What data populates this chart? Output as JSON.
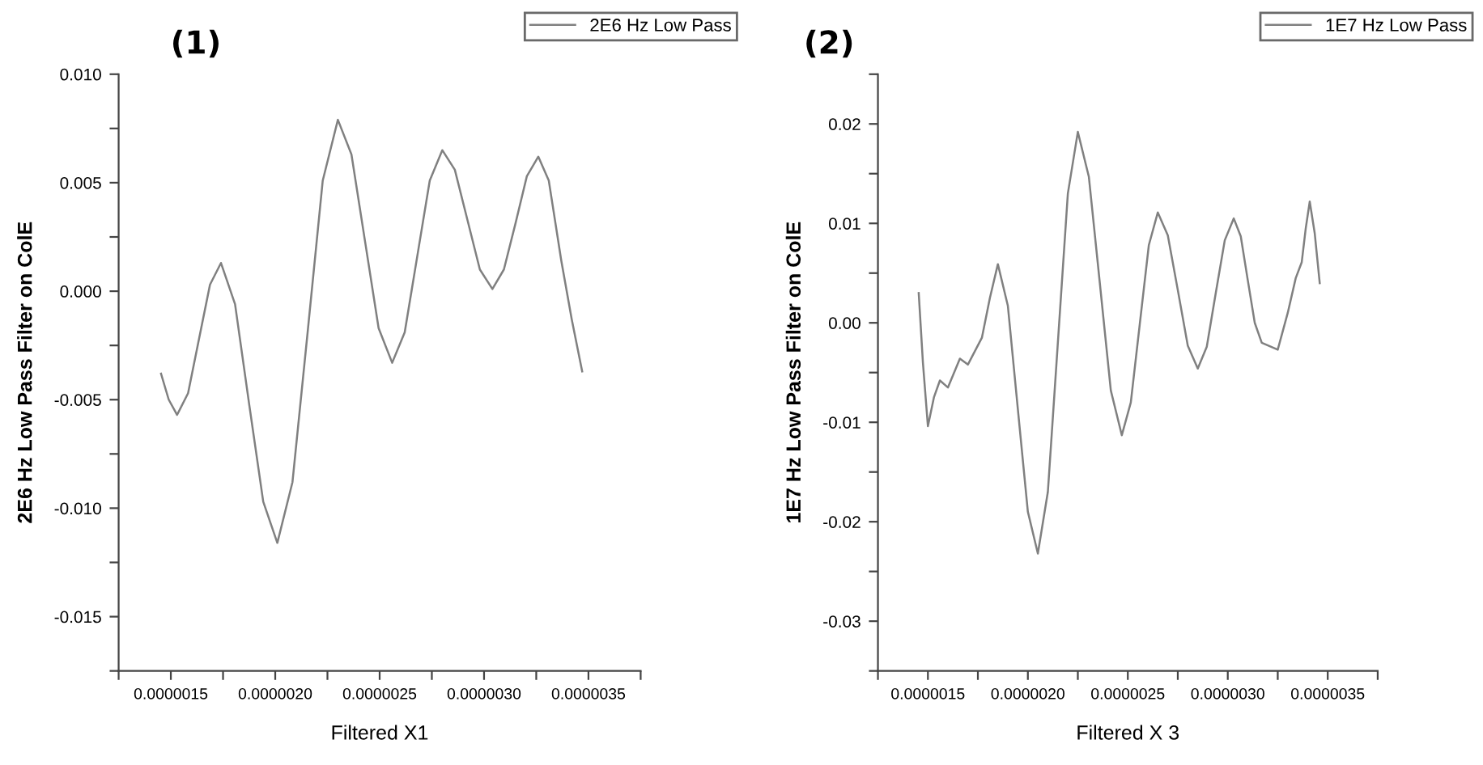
{
  "chart_data": [
    {
      "type": "line",
      "title": "(1)",
      "xlabel": "Filtered X1",
      "ylabel": "2E6 Hz Low Pass Filter on ColE",
      "legend": "top right",
      "marker": "none",
      "line_style": "solid",
      "grid": false,
      "xlim": [
        1.25e-06,
        3.75e-06
      ],
      "xticks": [
        {
          "value": 1.25e-06,
          "label": null
        },
        {
          "value": 1.5e-06,
          "label": "0.0000015"
        },
        {
          "value": 1.75e-06,
          "label": null
        },
        {
          "value": 2e-06,
          "label": "0.0000020"
        },
        {
          "value": 2.25e-06,
          "label": null
        },
        {
          "value": 2.5e-06,
          "label": "0.0000025"
        },
        {
          "value": 2.75e-06,
          "label": null
        },
        {
          "value": 3e-06,
          "label": "0.0000030"
        },
        {
          "value": 3.25e-06,
          "label": null
        },
        {
          "value": 3.5e-06,
          "label": "0.0000035"
        },
        {
          "value": 3.75e-06,
          "label": null
        }
      ],
      "ylim": [
        -0.0175,
        0.01
      ],
      "yticks": [
        {
          "value": -0.0175,
          "label": null
        },
        {
          "value": -0.015,
          "label": "-0.015"
        },
        {
          "value": -0.0125,
          "label": null
        },
        {
          "value": -0.01,
          "label": "-0.010"
        },
        {
          "value": -0.0075,
          "label": null
        },
        {
          "value": -0.005,
          "label": "-0.005"
        },
        {
          "value": -0.0025,
          "label": null
        },
        {
          "value": 0.0,
          "label": "0.000"
        },
        {
          "value": 0.0025,
          "label": null
        },
        {
          "value": 0.005,
          "label": "0.005"
        },
        {
          "value": 0.0075,
          "label": null
        },
        {
          "value": 0.01,
          "label": "0.010"
        }
      ],
      "series": [
        {
          "name": "2E6 Hz Low Pass",
          "color": "#808080",
          "x": [
            1.453e-06,
            1.49e-06,
            1.53e-06,
            1.5825e-06,
            1.635e-06,
            1.6875e-06,
            1.74e-06,
            1.8075e-06,
            1.875e-06,
            1.9425e-06,
            2.01e-06,
            2.0825e-06,
            2.155e-06,
            2.2275e-06,
            2.3e-06,
            2.365e-06,
            2.43e-06,
            2.495e-06,
            2.56e-06,
            2.62e-06,
            2.68e-06,
            2.74e-06,
            2.8e-06,
            2.86e-06,
            2.92e-06,
            2.98e-06,
            3.04e-06,
            3.095e-06,
            3.15e-06,
            3.205e-06,
            3.26e-06,
            3.31e-06,
            3.37e-06,
            3.42e-06,
            3.47e-06
          ],
          "values": [
            -0.0038,
            -0.005,
            -0.0057,
            -0.0047,
            -0.0022,
            0.0003,
            0.0013,
            -0.0006,
            -0.0052,
            -0.0097,
            -0.0116,
            -0.0088,
            -0.0019,
            0.0051,
            0.0079,
            0.0063,
            0.0023,
            -0.0017,
            -0.0033,
            -0.0019,
            0.0016,
            0.0051,
            0.0065,
            0.0056,
            0.0033,
            0.001,
            0.0001,
            0.001,
            0.0031,
            0.0053,
            0.0062,
            0.0051,
            0.0014,
            -0.0013,
            -0.0037
          ]
        }
      ]
    },
    {
      "type": "line",
      "title": "(2)",
      "xlabel": "Filtered X 3",
      "ylabel": "1E7 Hz Low Pass Filter on ColE",
      "legend": "top right",
      "marker": "none",
      "line_style": "solid",
      "grid": false,
      "xlim": [
        1.25e-06,
        3.75e-06
      ],
      "xticks": [
        {
          "value": 1.25e-06,
          "label": null
        },
        {
          "value": 1.5e-06,
          "label": "0.0000015"
        },
        {
          "value": 1.75e-06,
          "label": null
        },
        {
          "value": 2e-06,
          "label": "0.0000020"
        },
        {
          "value": 2.25e-06,
          "label": null
        },
        {
          "value": 2.5e-06,
          "label": "0.0000025"
        },
        {
          "value": 2.75e-06,
          "label": null
        },
        {
          "value": 3e-06,
          "label": "0.0000030"
        },
        {
          "value": 3.25e-06,
          "label": null
        },
        {
          "value": 3.5e-06,
          "label": "0.0000035"
        },
        {
          "value": 3.75e-06,
          "label": null
        }
      ],
      "ylim": [
        -0.035,
        0.025
      ],
      "yticks": [
        {
          "value": -0.035,
          "label": null
        },
        {
          "value": -0.03,
          "label": "-0.03"
        },
        {
          "value": -0.025,
          "label": null
        },
        {
          "value": -0.02,
          "label": "-0.02"
        },
        {
          "value": -0.015,
          "label": null
        },
        {
          "value": -0.01,
          "label": "-0.01"
        },
        {
          "value": -0.005,
          "label": null
        },
        {
          "value": 0.0,
          "label": "0.00"
        },
        {
          "value": 0.005,
          "label": null
        },
        {
          "value": 0.01,
          "label": "0.01"
        },
        {
          "value": 0.015,
          "label": null
        },
        {
          "value": 0.02,
          "label": "0.02"
        },
        {
          "value": 0.025,
          "label": null
        }
      ],
      "series": [
        {
          "name": "1E7 Hz Low Pass",
          "color": "#808080",
          "x": [
            1.454e-06,
            1.475e-06,
            1.5e-06,
            1.53e-06,
            1.56e-06,
            1.6e-06,
            1.66e-06,
            1.7e-06,
            1.77e-06,
            1.81e-06,
            1.85e-06,
            1.9e-06,
            1.95e-06,
            2e-06,
            2.05e-06,
            2.1e-06,
            2.15e-06,
            2.2e-06,
            2.25e-06,
            2.305e-06,
            2.36e-06,
            2.415e-06,
            2.47e-06,
            2.515e-06,
            2.56e-06,
            2.605e-06,
            2.65e-06,
            2.7e-06,
            2.75e-06,
            2.8e-06,
            2.85e-06,
            2.895e-06,
            2.94e-06,
            2.985e-06,
            3.03e-06,
            3.065e-06,
            3.1e-06,
            3.135e-06,
            3.17e-06,
            3.25e-06,
            3.3e-06,
            3.34e-06,
            3.37e-06,
            3.39e-06,
            3.41e-06,
            3.435e-06,
            3.46e-06
          ],
          "values": [
            0.003,
            -0.004,
            -0.0104,
            -0.0075,
            -0.0058,
            -0.0065,
            -0.0036,
            -0.0042,
            -0.0015,
            0.0025,
            0.0059,
            0.0017,
            -0.0087,
            -0.019,
            -0.0232,
            -0.017,
            -0.002,
            0.013,
            0.0192,
            0.0147,
            0.004,
            -0.0068,
            -0.0113,
            -0.008,
            -0.0001,
            0.0078,
            0.0111,
            0.0088,
            0.0033,
            -0.0023,
            -0.0046,
            -0.0024,
            0.003,
            0.0083,
            0.0105,
            0.0087,
            0.0043,
            0.0,
            -0.002,
            -0.0027,
            0.001,
            0.0045,
            0.0061,
            0.0095,
            0.0122,
            0.009,
            0.004
          ]
        }
      ]
    }
  ]
}
